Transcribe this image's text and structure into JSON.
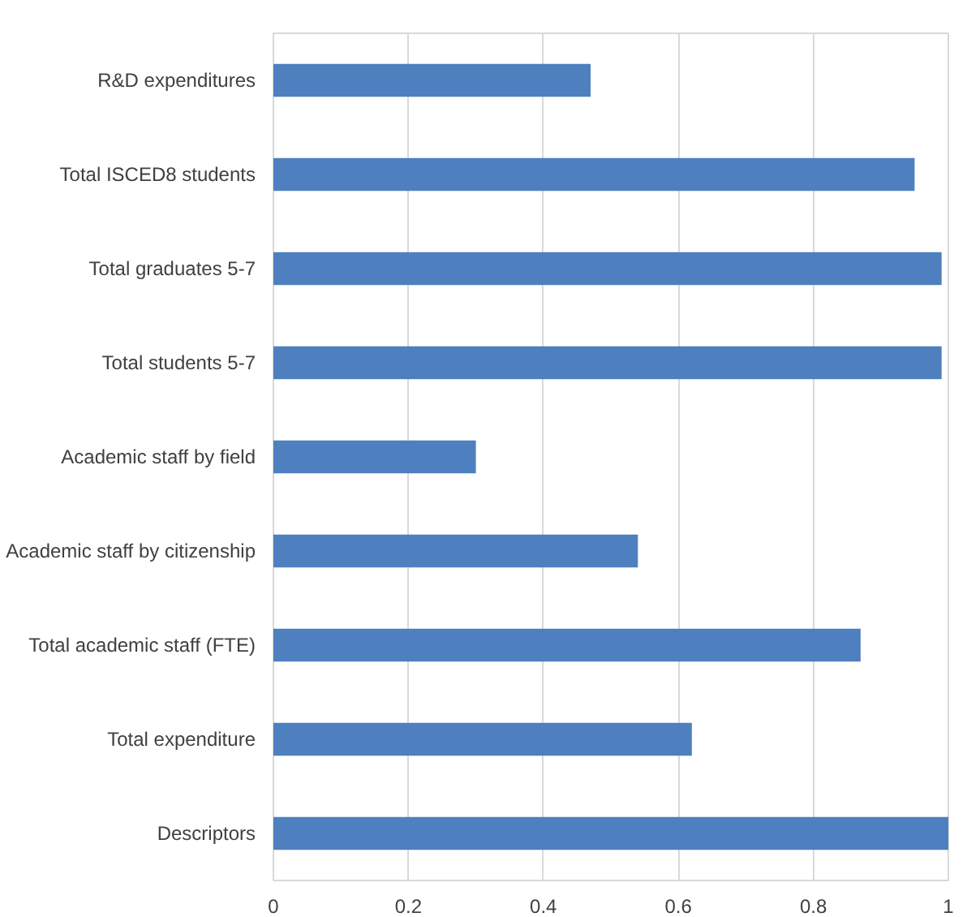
{
  "chart_data": {
    "type": "bar",
    "orientation": "horizontal",
    "categories": [
      "R&D expenditures",
      "Total ISCED8 students",
      "Total graduates 5-7",
      "Total students 5-7",
      "Academic staff by field",
      "Academic staff by citizenship",
      "Total academic staff (FTE)",
      "Total expenditure",
      "Descriptors"
    ],
    "values": [
      0.47,
      0.95,
      0.99,
      0.99,
      0.3,
      0.54,
      0.87,
      0.62,
      1.0
    ],
    "color": "#4e7fbf",
    "xlim": [
      0,
      1
    ],
    "xticks": [
      0,
      0.2,
      0.4,
      0.6,
      0.8,
      1
    ],
    "grid": "x"
  }
}
